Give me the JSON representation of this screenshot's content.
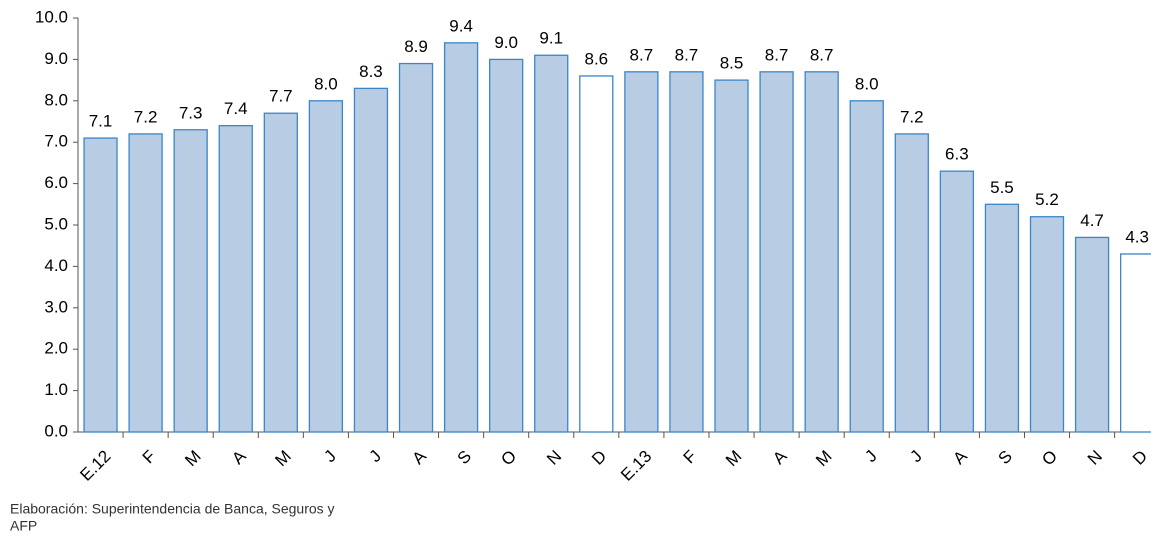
{
  "chart_data": {
    "type": "bar",
    "categories": [
      "E.12",
      "F",
      "M",
      "A",
      "M",
      "J",
      "J",
      "A",
      "S",
      "O",
      "N",
      "D",
      "E.13",
      "F",
      "M",
      "A",
      "M",
      "J",
      "J",
      "A",
      "S",
      "O",
      "N",
      "D"
    ],
    "values": [
      7.1,
      7.2,
      7.3,
      7.4,
      7.7,
      8.0,
      8.3,
      8.9,
      9.4,
      9.0,
      9.1,
      8.6,
      8.7,
      8.7,
      8.5,
      8.7,
      8.7,
      8.0,
      7.2,
      6.3,
      5.5,
      5.2,
      4.7,
      4.3
    ],
    "value_labels": [
      "7.1",
      "7.2",
      "7.3",
      "7.4",
      "7.7",
      "8.0",
      "8.3",
      "8.9",
      "9.4",
      "9.0",
      "9.1",
      "8.6",
      "8.7",
      "8.7",
      "8.5",
      "8.7",
      "8.7",
      "8.0",
      "7.2",
      "6.3",
      "5.5",
      "5.2",
      "4.7",
      "4.3"
    ],
    "colors": [
      "#b8cce4",
      "#b8cce4",
      "#b8cce4",
      "#b8cce4",
      "#b8cce4",
      "#b8cce4",
      "#b8cce4",
      "#b8cce4",
      "#b8cce4",
      "#b8cce4",
      "#b8cce4",
      "#ffffff",
      "#b8cce4",
      "#b8cce4",
      "#b8cce4",
      "#b8cce4",
      "#b8cce4",
      "#b8cce4",
      "#b8cce4",
      "#b8cce4",
      "#b8cce4",
      "#b8cce4",
      "#b8cce4",
      "#ffffff"
    ],
    "edge_color": "#3a86c8",
    "ylim": [
      0,
      10
    ],
    "yticks": [
      {
        "value": 0,
        "label": "0.0"
      },
      {
        "value": 1,
        "label": "1.0"
      },
      {
        "value": 2,
        "label": "2.0"
      },
      {
        "value": 3,
        "label": "3.0"
      },
      {
        "value": 4,
        "label": "4.0"
      },
      {
        "value": 5,
        "label": "5.0"
      },
      {
        "value": 6,
        "label": "6.0"
      },
      {
        "value": 7,
        "label": "7.0"
      },
      {
        "value": 8,
        "label": "8.0"
      },
      {
        "value": 9,
        "label": "9.0"
      },
      {
        "value": 10,
        "label": "10.0"
      }
    ],
    "grid": false,
    "source": [
      "Elaboración: Superintendencia de Banca, Seguros y",
      "AFP"
    ]
  }
}
